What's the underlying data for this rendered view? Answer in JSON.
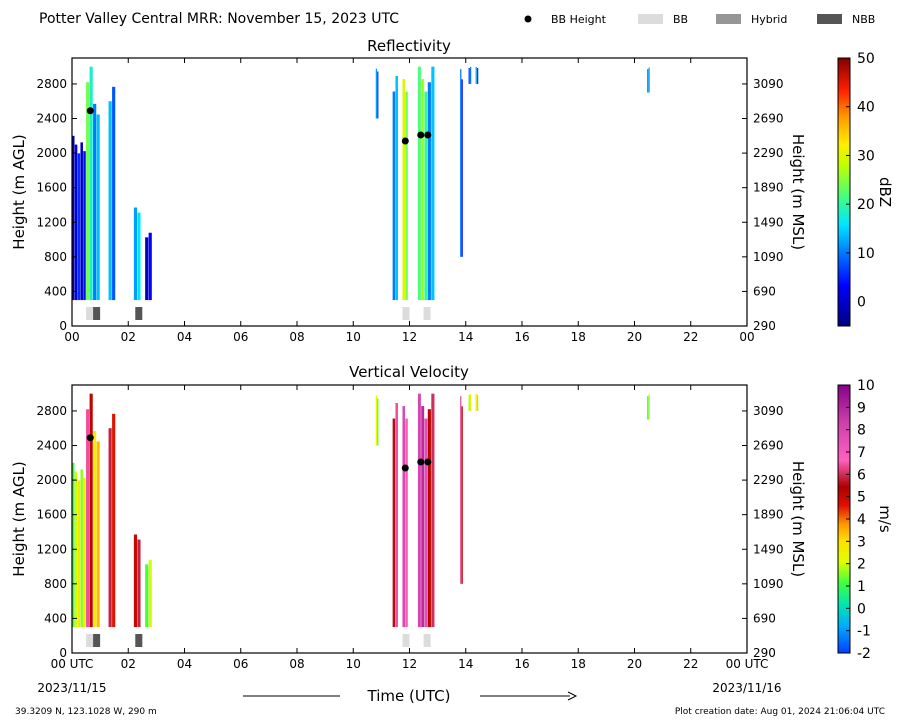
{
  "header": {
    "title": "Potter Valley Central MRR:  November 15, 2023 UTC",
    "legend": [
      {
        "label": "BB Height",
        "marker": "dot",
        "color": "#000000"
      },
      {
        "label": "BB",
        "marker": "box",
        "color": "#dcdcdc"
      },
      {
        "label": "Hybrid",
        "marker": "box",
        "color": "#969696"
      },
      {
        "label": "NBB",
        "marker": "box",
        "color": "#555555"
      }
    ]
  },
  "footer": {
    "location": "39.3209 N, 123.1028 W, 290 m",
    "creation": "Plot creation date: Aug 01, 2024 21:06:04 UTC",
    "xlabel": "Time (UTC)",
    "start_date": "2023/11/15",
    "end_date": "2023/11/16"
  },
  "chart_data": [
    {
      "type": "heatmap",
      "title": "Reflectivity",
      "ylabel": "Height (m AGL)",
      "ylabel_right": "Height (m MSL)",
      "xlim": [
        0,
        24
      ],
      "ylim": [
        0,
        3100
      ],
      "x_ticks": [
        "00",
        "02",
        "04",
        "06",
        "08",
        "10",
        "12",
        "14",
        "16",
        "18",
        "20",
        "22",
        "00"
      ],
      "y_ticks": [
        0,
        400,
        800,
        1200,
        1600,
        2000,
        2400,
        2800
      ],
      "y_ticks_right": [
        290,
        690,
        1090,
        1490,
        1890,
        2290,
        2690,
        3090
      ],
      "colorbar": {
        "label": "dBZ",
        "min": -5,
        "max": 50,
        "ticks": [
          0,
          10,
          20,
          30,
          40,
          50
        ]
      },
      "bb_height_points": [
        {
          "x": 0.65,
          "y": 2490
        },
        {
          "x": 11.85,
          "y": 2140
        },
        {
          "x": 12.4,
          "y": 2210
        },
        {
          "x": 12.65,
          "y": 2210
        }
      ],
      "bb_type_boxes": [
        {
          "x0": 0.5,
          "x1": 0.75,
          "type": "BB"
        },
        {
          "x0": 0.75,
          "x1": 1.0,
          "type": "NBB"
        },
        {
          "x0": 2.25,
          "x1": 2.5,
          "type": "NBB"
        },
        {
          "x0": 11.75,
          "x1": 12.0,
          "type": "BB"
        },
        {
          "x0": 12.5,
          "x1": 12.75,
          "type": "BB"
        }
      ],
      "echo_columns": [
        {
          "x0": 0.0,
          "x1": 0.5,
          "ybot": 300,
          "ytop": 2200,
          "v": 2
        },
        {
          "x0": 0.5,
          "x1": 0.75,
          "ybot": 300,
          "ytop": 3000,
          "v": 22
        },
        {
          "x0": 0.75,
          "x1": 1.0,
          "ybot": 300,
          "ytop": 2600,
          "v": 12
        },
        {
          "x0": 1.3,
          "x1": 1.55,
          "ybot": 300,
          "ytop": 2800,
          "v": 10
        },
        {
          "x0": 2.2,
          "x1": 2.45,
          "ybot": 300,
          "ytop": 1400,
          "v": 12
        },
        {
          "x0": 2.6,
          "x1": 2.85,
          "ybot": 300,
          "ytop": 1100,
          "v": 3
        },
        {
          "x0": 10.8,
          "x1": 10.9,
          "ybot": 2400,
          "ytop": 3000,
          "v": 10
        },
        {
          "x0": 11.4,
          "x1": 11.6,
          "ybot": 300,
          "ytop": 3000,
          "v": 12
        },
        {
          "x0": 11.75,
          "x1": 11.95,
          "ybot": 300,
          "ytop": 3000,
          "v": 26
        },
        {
          "x0": 12.3,
          "x1": 12.65,
          "ybot": 300,
          "ytop": 3000,
          "v": 22
        },
        {
          "x0": 12.65,
          "x1": 12.9,
          "ybot": 300,
          "ytop": 3000,
          "v": 14
        },
        {
          "x0": 13.8,
          "x1": 13.9,
          "ybot": 800,
          "ytop": 3000,
          "v": 8
        },
        {
          "x0": 14.1,
          "x1": 14.2,
          "ybot": 2800,
          "ytop": 3000,
          "v": 8
        },
        {
          "x0": 14.35,
          "x1": 14.45,
          "ybot": 2800,
          "ytop": 3000,
          "v": 8
        },
        {
          "x0": 20.45,
          "x1": 20.55,
          "ybot": 2700,
          "ytop": 3000,
          "v": 10
        }
      ]
    },
    {
      "type": "heatmap",
      "title": "Vertical Velocity",
      "ylabel": "Height (m AGL)",
      "ylabel_right": "Height (m MSL)",
      "xlim": [
        0,
        24
      ],
      "ylim": [
        0,
        3100
      ],
      "x_ticks": [
        "00 UTC",
        "02",
        "04",
        "06",
        "08",
        "10",
        "12",
        "14",
        "16",
        "18",
        "20",
        "22",
        "00 UTC"
      ],
      "y_ticks": [
        0,
        400,
        800,
        1200,
        1600,
        2000,
        2400,
        2800
      ],
      "y_ticks_right": [
        290,
        690,
        1090,
        1490,
        1890,
        2290,
        2690,
        3090
      ],
      "colorbar": {
        "label": "m/s",
        "min": -2,
        "max": 10,
        "ticks": [
          -2,
          -1,
          0,
          1,
          2,
          3,
          4,
          5,
          6,
          7,
          8,
          9,
          10
        ]
      },
      "bb_height_points": [
        {
          "x": 0.65,
          "y": 2490
        },
        {
          "x": 11.85,
          "y": 2140
        },
        {
          "x": 12.4,
          "y": 2210
        },
        {
          "x": 12.65,
          "y": 2210
        }
      ],
      "bb_type_boxes": [
        {
          "x0": 0.5,
          "x1": 0.75,
          "type": "BB"
        },
        {
          "x0": 0.75,
          "x1": 1.0,
          "type": "NBB"
        },
        {
          "x0": 2.25,
          "x1": 2.5,
          "type": "NBB"
        },
        {
          "x0": 11.75,
          "x1": 12.0,
          "type": "BB"
        },
        {
          "x0": 12.5,
          "x1": 12.75,
          "type": "BB"
        }
      ],
      "echo_columns": [
        {
          "x0": 0.0,
          "x1": 0.5,
          "ybot": 300,
          "ytop": 2200,
          "v": 2
        },
        {
          "x0": 0.5,
          "x1": 0.75,
          "ybot": 300,
          "ytop": 3000,
          "v": 6
        },
        {
          "x0": 0.75,
          "x1": 1.0,
          "ybot": 300,
          "ytop": 2600,
          "v": 3
        },
        {
          "x0": 1.3,
          "x1": 1.55,
          "ybot": 300,
          "ytop": 2800,
          "v": 5
        },
        {
          "x0": 2.2,
          "x1": 2.45,
          "ybot": 300,
          "ytop": 1400,
          "v": 5
        },
        {
          "x0": 2.6,
          "x1": 2.85,
          "ybot": 300,
          "ytop": 1100,
          "v": 2
        },
        {
          "x0": 10.8,
          "x1": 10.9,
          "ybot": 2400,
          "ytop": 3000,
          "v": 2
        },
        {
          "x0": 11.4,
          "x1": 11.6,
          "ybot": 300,
          "ytop": 3000,
          "v": 6
        },
        {
          "x0": 11.75,
          "x1": 11.95,
          "ybot": 300,
          "ytop": 3000,
          "v": 7
        },
        {
          "x0": 12.3,
          "x1": 12.65,
          "ybot": 300,
          "ytop": 3000,
          "v": 8
        },
        {
          "x0": 12.65,
          "x1": 12.9,
          "ybot": 300,
          "ytop": 3000,
          "v": 6
        },
        {
          "x0": 13.8,
          "x1": 13.9,
          "ybot": 800,
          "ytop": 3000,
          "v": 6
        },
        {
          "x0": 14.1,
          "x1": 14.2,
          "ybot": 2800,
          "ytop": 3000,
          "v": 2
        },
        {
          "x0": 14.35,
          "x1": 14.45,
          "ybot": 2800,
          "ytop": 3000,
          "v": 2
        },
        {
          "x0": 20.45,
          "x1": 20.55,
          "ybot": 2700,
          "ytop": 3000,
          "v": 1
        }
      ]
    }
  ]
}
